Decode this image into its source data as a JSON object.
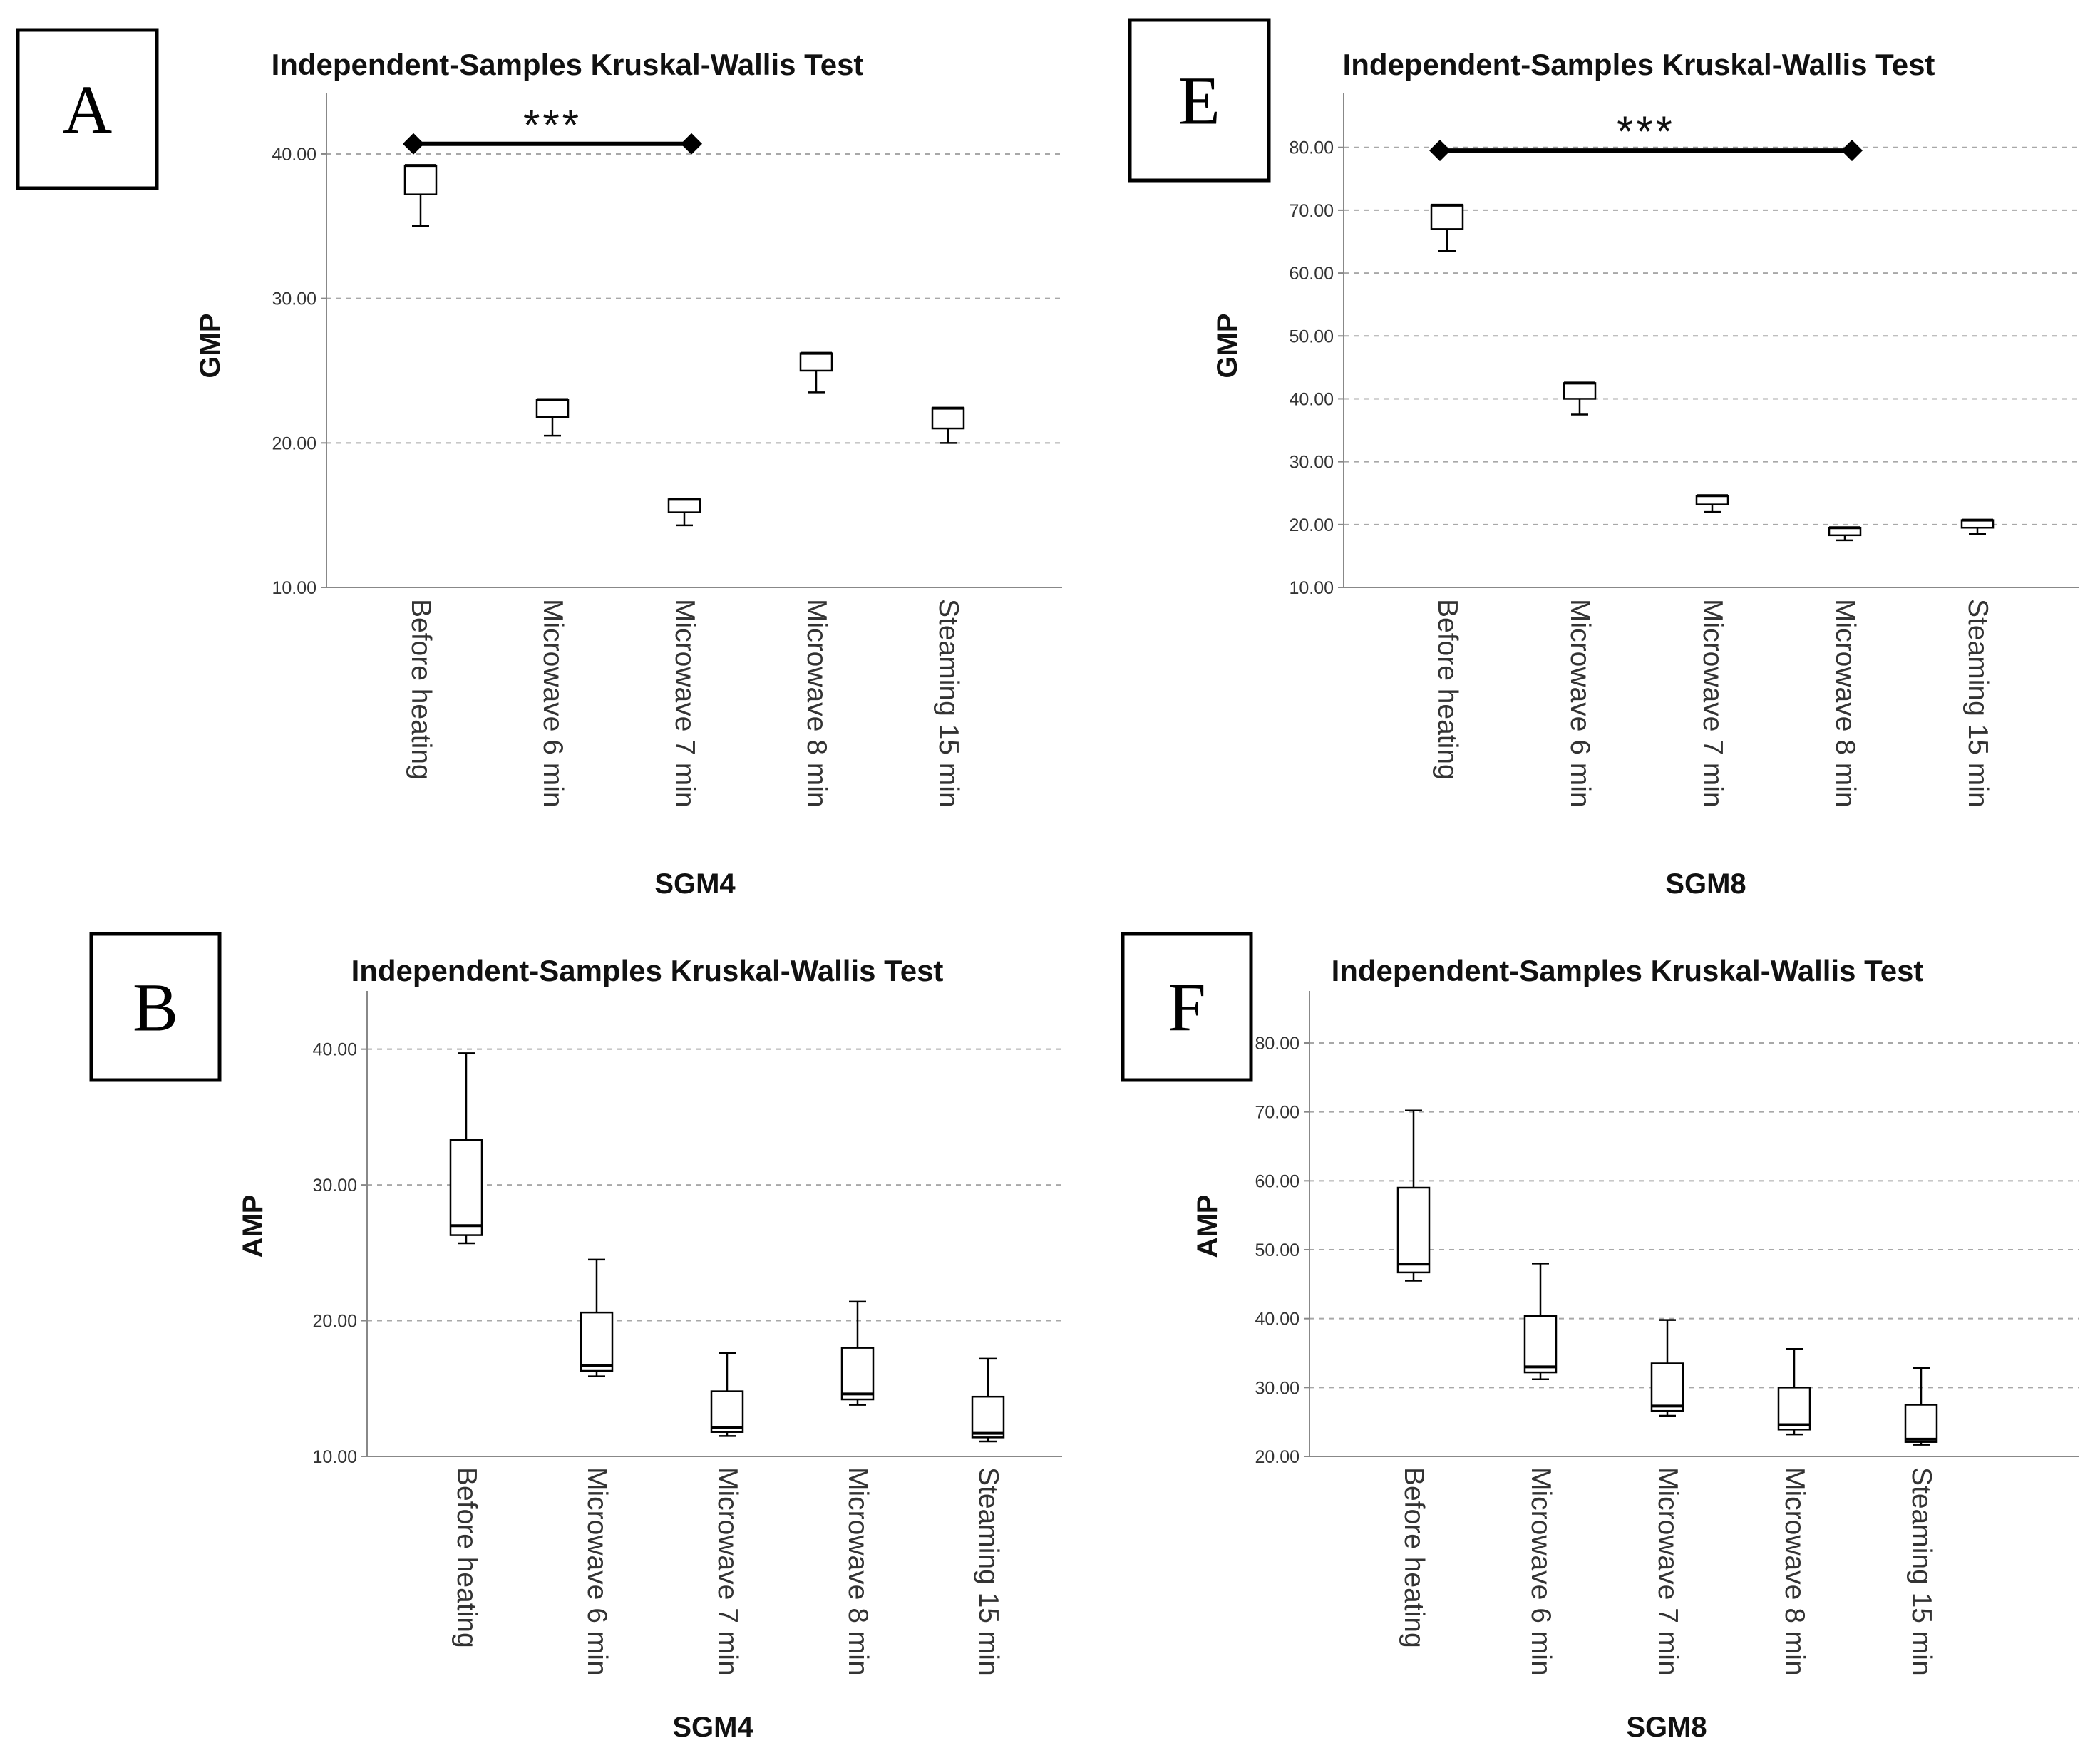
{
  "figure": {
    "panels_order": [
      "A",
      "E",
      "B",
      "F"
    ]
  },
  "chart_data": [
    {
      "panel": "A",
      "type": "boxplot",
      "title": "Independent-Samples Kruskal-Wallis Test",
      "xlabel": "SGM4",
      "ylabel": "GMP",
      "ylim": [
        10,
        43.5
      ],
      "yticks": [
        10,
        20,
        30,
        40
      ],
      "ytick_labels": [
        "10.00",
        "20.00",
        "30.00",
        "40.00"
      ],
      "grid": true,
      "categories": [
        "Before heating",
        "Microwave 6 min",
        "Microwave 7 min",
        "Microwave 8 min",
        "Steaming 15 min"
      ],
      "boxes": [
        {
          "min": 35.0,
          "q1": 37.2,
          "median": 39.2,
          "q3": 39.2,
          "max": 39.2
        },
        {
          "min": 20.5,
          "q1": 21.8,
          "median": 23.0,
          "q3": 23.0,
          "max": 23.0
        },
        {
          "min": 14.3,
          "q1": 15.2,
          "median": 16.1,
          "q3": 16.1,
          "max": 16.1
        },
        {
          "min": 23.5,
          "q1": 25.0,
          "median": 26.2,
          "q3": 26.2,
          "max": 26.2
        },
        {
          "min": 20.0,
          "q1": 21.0,
          "median": 22.4,
          "q3": 22.4,
          "max": 22.4
        }
      ],
      "significance": {
        "from": 0,
        "to": 2,
        "y": 40.7,
        "label": "***"
      }
    },
    {
      "panel": "E",
      "type": "boxplot",
      "title": "Independent-Samples Kruskal-Wallis Test",
      "xlabel": "SGM8",
      "ylabel": "GMP",
      "ylim": [
        10,
        87
      ],
      "yticks": [
        10,
        20,
        30,
        40,
        50,
        60,
        70,
        80
      ],
      "ytick_labels": [
        "10.00",
        "20.00",
        "30.00",
        "40.00",
        "50.00",
        "60.00",
        "70.00",
        "80.00"
      ],
      "grid": true,
      "categories": [
        "Before heating",
        "Microwave 6 min",
        "Microwave 7 min",
        "Microwave 8 min",
        "Steaming 15 min"
      ],
      "boxes": [
        {
          "min": 63.5,
          "q1": 67.0,
          "median": 70.8,
          "q3": 70.8,
          "max": 70.8
        },
        {
          "min": 37.5,
          "q1": 40.0,
          "median": 42.5,
          "q3": 42.5,
          "max": 42.5
        },
        {
          "min": 22.0,
          "q1": 23.2,
          "median": 24.6,
          "q3": 24.6,
          "max": 24.6
        },
        {
          "min": 17.5,
          "q1": 18.3,
          "median": 19.5,
          "q3": 19.5,
          "max": 19.5
        },
        {
          "min": 18.5,
          "q1": 19.5,
          "median": 20.7,
          "q3": 20.7,
          "max": 20.7
        }
      ],
      "significance": {
        "from": 0,
        "to": 3,
        "y": 79.5,
        "label": "***"
      }
    },
    {
      "panel": "B",
      "type": "boxplot",
      "title": "Independent-Samples Kruskal-Wallis Test",
      "xlabel": "SGM4",
      "ylabel": "AMP",
      "ylim": [
        10,
        43.5
      ],
      "yticks": [
        10,
        20,
        30,
        40
      ],
      "ytick_labels": [
        "10.00",
        "20.00",
        "30.00",
        "40.00"
      ],
      "grid": true,
      "categories": [
        "Before heating",
        "Microwave 6 min",
        "Microwave 7 min",
        "Microwave 8 min",
        "Steaming 15 min"
      ],
      "boxes": [
        {
          "min": 25.7,
          "q1": 26.3,
          "median": 27.0,
          "q3": 33.3,
          "max": 39.7
        },
        {
          "min": 15.9,
          "q1": 16.3,
          "median": 16.7,
          "q3": 20.6,
          "max": 24.5
        },
        {
          "min": 11.5,
          "q1": 11.8,
          "median": 12.1,
          "q3": 14.8,
          "max": 17.6
        },
        {
          "min": 13.8,
          "q1": 14.2,
          "median": 14.6,
          "q3": 18.0,
          "max": 21.4
        },
        {
          "min": 11.1,
          "q1": 11.4,
          "median": 11.7,
          "q3": 14.4,
          "max": 17.2
        }
      ]
    },
    {
      "panel": "F",
      "type": "boxplot",
      "title": "Independent-Samples Kruskal-Wallis Test",
      "xlabel": "SGM8",
      "ylabel": "AMP",
      "ylim": [
        20,
        86
      ],
      "yticks": [
        20,
        30,
        40,
        50,
        60,
        70,
        80
      ],
      "ytick_labels": [
        "20.00",
        "30.00",
        "40.00",
        "50.00",
        "60.00",
        "70.00",
        "80.00"
      ],
      "grid": true,
      "categories": [
        "Before heating",
        "Microwave 6 min",
        "Microwave 7 min",
        "Microwave 8 min",
        "Steaming 15 min"
      ],
      "boxes": [
        {
          "min": 45.5,
          "q1": 46.7,
          "median": 47.9,
          "q3": 59.0,
          "max": 70.2
        },
        {
          "min": 31.2,
          "q1": 32.2,
          "median": 33.0,
          "q3": 40.4,
          "max": 48.0
        },
        {
          "min": 25.9,
          "q1": 26.6,
          "median": 27.3,
          "q3": 33.5,
          "max": 39.8
        },
        {
          "min": 23.2,
          "q1": 23.9,
          "median": 24.6,
          "q3": 30.0,
          "max": 35.6
        },
        {
          "min": 21.7,
          "q1": 22.1,
          "median": 22.5,
          "q3": 27.5,
          "max": 32.8
        }
      ]
    }
  ]
}
